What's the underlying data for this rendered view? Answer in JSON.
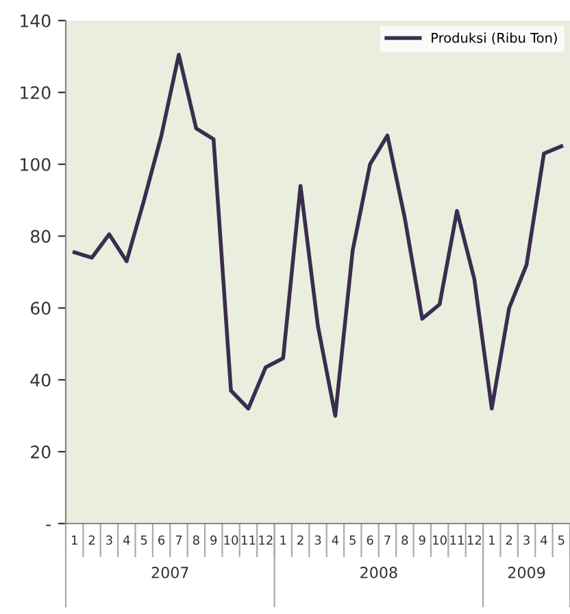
{
  "chart_data": {
    "type": "line",
    "categories": [
      "1",
      "2",
      "3",
      "4",
      "5",
      "6",
      "7",
      "8",
      "9",
      "10",
      "11",
      "12",
      "1",
      "2",
      "3",
      "4",
      "5",
      "6",
      "7",
      "8",
      "9",
      "10",
      "11",
      "12",
      "1",
      "2",
      "3",
      "4",
      "5"
    ],
    "series": [
      {
        "name": "Produksi (Ribu Ton)",
        "color": "#3b2d4f",
        "values": [
          75.5,
          74,
          80.5,
          73,
          90,
          108,
          130.5,
          110,
          107,
          37,
          32,
          43.5,
          46,
          94,
          55,
          30,
          76,
          100,
          108,
          85,
          57,
          61,
          87,
          68,
          32,
          60,
          72,
          103,
          105
        ]
      }
    ],
    "ylim": [
      0,
      140
    ],
    "yticks": [
      {
        "value": 0,
        "label": "-"
      },
      20,
      40,
      60,
      80,
      100,
      120,
      140
    ],
    "annotations": [
      "2007",
      "2008",
      "2009"
    ],
    "legend": "top right",
    "grid": false,
    "marker": "none",
    "line_style": "solid"
  }
}
